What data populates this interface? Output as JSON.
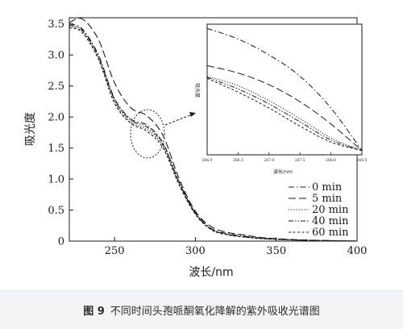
{
  "caption": {
    "figure_label": "图 9",
    "text": "不同时间头孢哌酮氧化降解的紫外吸收光谱图"
  },
  "colors": {
    "line": "#1a1a1a",
    "caption_background": "#f1f5f8"
  },
  "chart_data": [
    {
      "type": "line",
      "title": "",
      "xlabel": "波长/nm",
      "ylabel": "吸光度",
      "xlim": [
        222,
        400
      ],
      "ylim": [
        0,
        3.6
      ],
      "xticks": [
        250,
        300,
        350,
        400
      ],
      "yticks": [
        0,
        0.5,
        1.0,
        1.5,
        2.0,
        2.5,
        3.0,
        3.5
      ],
      "ytick_labels": [
        "0",
        "0.5",
        "1.0",
        "1.5",
        "2.0",
        "2.5",
        "3.0",
        "3.5"
      ],
      "grid": false,
      "legend_position": "bottom-right",
      "annotation": "dashed ellipse around 262–284 nm, arrow to inset",
      "series": [
        {
          "name": "0 min",
          "style": "dash-dot",
          "x": [
            222,
            230,
            240,
            250,
            260,
            270,
            280,
            290,
            300,
            310,
            320,
            330,
            340,
            350,
            360,
            370,
            380,
            390,
            400
          ],
          "y": [
            3.5,
            3.42,
            3.0,
            2.3,
            1.97,
            1.87,
            1.58,
            0.95,
            0.46,
            0.2,
            0.12,
            0.08,
            0.05,
            0.035,
            0.02,
            0.015,
            0.01,
            0.005,
            0.0
          ]
        },
        {
          "name": "5 min",
          "style": "long-dash",
          "x": [
            222,
            230,
            240,
            250,
            260,
            270,
            280,
            290,
            300,
            310,
            320,
            330,
            340,
            350,
            360,
            370,
            380,
            390,
            400
          ],
          "y": [
            3.52,
            3.58,
            3.25,
            2.55,
            2.15,
            2.02,
            1.7,
            1.0,
            0.48,
            0.23,
            0.14,
            0.1,
            0.06,
            0.04,
            0.025,
            0.017,
            0.01,
            0.005,
            0.0
          ]
        },
        {
          "name": "20 min",
          "style": "dotted",
          "x": [
            222,
            230,
            240,
            250,
            260,
            270,
            280,
            290,
            300,
            310,
            320,
            330,
            340,
            350,
            360,
            370,
            380,
            390,
            400
          ],
          "y": [
            3.46,
            3.38,
            2.95,
            2.25,
            1.92,
            1.8,
            1.53,
            0.92,
            0.44,
            0.19,
            0.11,
            0.07,
            0.045,
            0.03,
            0.02,
            0.013,
            0.008,
            0.004,
            0.0
          ]
        },
        {
          "name": "40 min",
          "style": "dash-dot-dot",
          "x": [
            222,
            230,
            240,
            250,
            260,
            270,
            280,
            290,
            300,
            310,
            320,
            330,
            340,
            350,
            360,
            370,
            380,
            390,
            400
          ],
          "y": [
            3.48,
            3.4,
            2.98,
            2.28,
            1.95,
            1.84,
            1.56,
            0.94,
            0.45,
            0.19,
            0.11,
            0.07,
            0.045,
            0.03,
            0.02,
            0.013,
            0.008,
            0.004,
            0.0
          ]
        },
        {
          "name": "60 min",
          "style": "short-dash",
          "x": [
            222,
            230,
            240,
            250,
            260,
            270,
            280,
            290,
            300,
            310,
            320,
            330,
            340,
            350,
            360,
            370,
            380,
            390,
            400
          ],
          "y": [
            3.44,
            3.36,
            2.93,
            2.22,
            1.9,
            1.77,
            1.5,
            0.9,
            0.43,
            0.18,
            0.1,
            0.065,
            0.04,
            0.028,
            0.018,
            0.012,
            0.007,
            0.003,
            0.0
          ]
        }
      ]
    },
    {
      "type": "line",
      "role": "inset-zoom",
      "ylabel": "吸光度",
      "xlabel": "波长/nm",
      "xtick_labels": [
        "266.0",
        "266.5",
        "267.0",
        "267.5",
        "268.0",
        "268.5"
      ],
      "series": [
        {
          "name": "0 min",
          "style": "dash-dot",
          "x": [
            266.0,
            266.5,
            267.0,
            267.5,
            268.0,
            268.5
          ],
          "y": [
            1.975,
            1.965,
            1.95,
            1.93,
            1.9,
            1.86
          ]
        },
        {
          "name": "5 min",
          "style": "long-dash",
          "x": [
            266.0,
            266.5,
            267.0,
            267.5,
            268.0,
            268.5
          ],
          "y": [
            1.94,
            1.933,
            1.922,
            1.906,
            1.885,
            1.86
          ]
        },
        {
          "name": "20 min",
          "style": "dotted",
          "x": [
            266.0,
            266.5,
            267.0,
            267.5,
            268.0,
            268.5
          ],
          "y": [
            1.93,
            1.921,
            1.907,
            1.89,
            1.872,
            1.86
          ]
        },
        {
          "name": "40 min",
          "style": "dash-dot-dot",
          "x": [
            266.0,
            266.5,
            267.0,
            267.5,
            268.0,
            268.5
          ],
          "y": [
            1.929,
            1.918,
            1.904,
            1.887,
            1.87,
            1.86
          ]
        },
        {
          "name": "60 min",
          "style": "short-dash",
          "x": [
            266.0,
            266.5,
            267.0,
            267.5,
            268.0,
            268.5
          ],
          "y": [
            1.928,
            1.915,
            1.9,
            1.883,
            1.868,
            1.86
          ]
        }
      ]
    }
  ]
}
